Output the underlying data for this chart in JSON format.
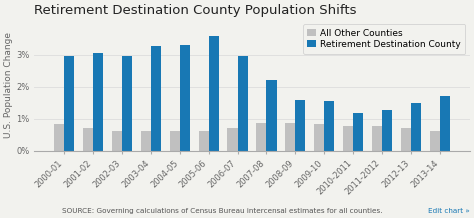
{
  "title": "Retirement Destination County Population Shifts",
  "ylabel": "U.S. Population Change",
  "source": "SOURCE: Governing calculations of Census Bureau intercensal estimates for all counties.",
  "edit_chart": "Edit chart »",
  "categories": [
    "2000-01",
    "2001-02",
    "2002-03",
    "2003-04",
    "2004-05",
    "2005-06",
    "2006-07",
    "2007-08",
    "2008-09",
    "2009-10",
    "2010-2011",
    "2011-2012",
    "2012-13",
    "2013-14"
  ],
  "retirement_values": [
    2.95,
    3.05,
    2.97,
    3.27,
    3.3,
    3.6,
    2.97,
    2.22,
    1.58,
    1.55,
    1.17,
    1.28,
    1.48,
    1.72
  ],
  "other_values": [
    0.82,
    0.72,
    0.62,
    0.62,
    0.62,
    0.62,
    0.7,
    0.85,
    0.85,
    0.82,
    0.78,
    0.78,
    0.7,
    0.62
  ],
  "retirement_color": "#1878b4",
  "other_color": "#c0c0c0",
  "background_color": "#f2f2ee",
  "ylim": [
    0,
    4.1
  ],
  "yticks": [
    0,
    1,
    2,
    3
  ],
  "ytick_labels": [
    "0%",
    "1%",
    "2%",
    "3%"
  ],
  "legend_labels": [
    "All Other Counties",
    "Retirement Destination County"
  ],
  "title_fontsize": 9.5,
  "ylabel_fontsize": 6.5,
  "tick_fontsize": 6.0,
  "legend_fontsize": 6.5,
  "source_fontsize": 5.2
}
